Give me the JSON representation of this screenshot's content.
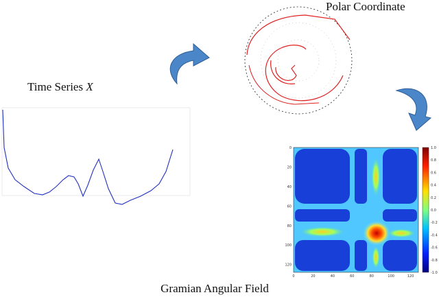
{
  "labels": {
    "time_series": "Time Series",
    "time_series_var": "X",
    "polar": "Polar Coordinate",
    "gaf": "Gramian Angular Field"
  },
  "heatmap": {
    "axis_ticks": [
      "0",
      "20",
      "40",
      "60",
      "80",
      "100",
      "120"
    ],
    "colorbar_ticks": [
      "1.0",
      "0.8",
      "0.6",
      "0.4",
      "0.2",
      "0.0",
      "-0.2",
      "-0.4",
      "-0.6",
      "-0.8",
      "-1.0"
    ]
  }
}
